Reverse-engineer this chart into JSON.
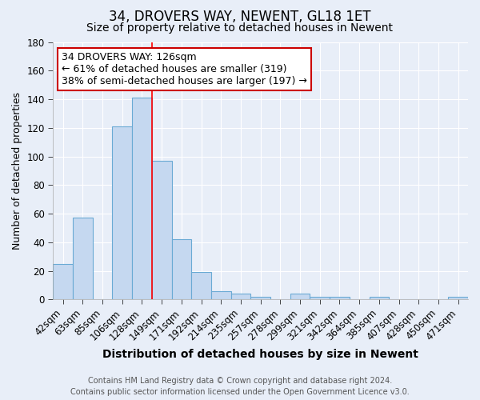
{
  "title": "34, DROVERS WAY, NEWENT, GL18 1ET",
  "subtitle": "Size of property relative to detached houses in Newent",
  "xlabel": "Distribution of detached houses by size in Newent",
  "ylabel": "Number of detached properties",
  "categories": [
    "42sqm",
    "63sqm",
    "85sqm",
    "106sqm",
    "128sqm",
    "149sqm",
    "171sqm",
    "192sqm",
    "214sqm",
    "235sqm",
    "257sqm",
    "278sqm",
    "299sqm",
    "321sqm",
    "342sqm",
    "364sqm",
    "385sqm",
    "407sqm",
    "428sqm",
    "450sqm",
    "471sqm"
  ],
  "values": [
    25,
    57,
    0,
    121,
    141,
    97,
    42,
    19,
    6,
    4,
    2,
    0,
    4,
    2,
    2,
    0,
    2,
    0,
    0,
    0,
    2
  ],
  "bar_color": "#c5d8f0",
  "bar_edge_color": "#6aaad4",
  "red_line_x": 4.5,
  "ylim": [
    0,
    180
  ],
  "yticks": [
    0,
    20,
    40,
    60,
    80,
    100,
    120,
    140,
    160,
    180
  ],
  "annotation_text": "34 DROVERS WAY: 126sqm\n← 61% of detached houses are smaller (319)\n38% of semi-detached houses are larger (197) →",
  "annotation_box_color": "#ffffff",
  "annotation_box_edge_color": "#cc0000",
  "footer_line1": "Contains HM Land Registry data © Crown copyright and database right 2024.",
  "footer_line2": "Contains public sector information licensed under the Open Government Licence v3.0.",
  "background_color": "#e8eef8",
  "plot_bg_color": "#e8eef8",
  "title_fontsize": 12,
  "subtitle_fontsize": 10,
  "tick_fontsize": 8.5,
  "ylabel_fontsize": 9,
  "xlabel_fontsize": 10,
  "footer_fontsize": 7,
  "annotation_fontsize": 9
}
